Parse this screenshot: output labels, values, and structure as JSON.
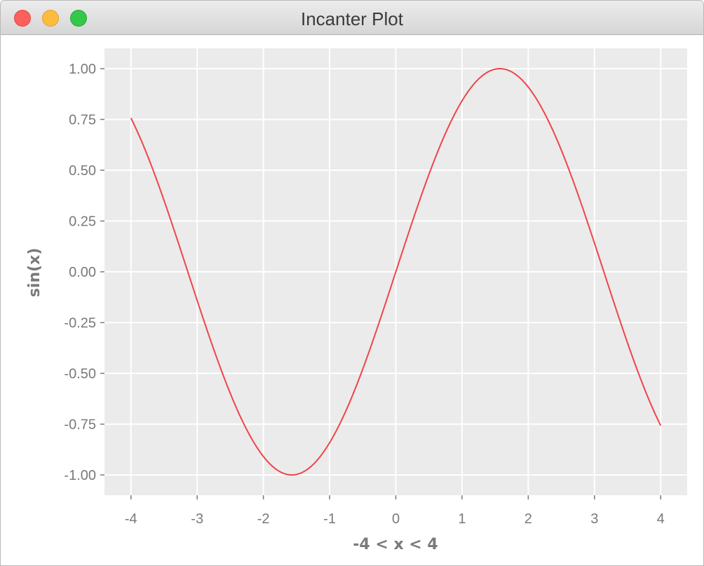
{
  "window": {
    "title": "Incanter Plot",
    "buttons": {
      "close": "close-button",
      "minimize": "minimize-button",
      "zoom": "zoom-button"
    }
  },
  "colors": {
    "plot_background": "#ebebeb",
    "gridline": "#ffffff",
    "series_line": "#f0444a",
    "tick_text": "#7a7a7a"
  },
  "chart_data": {
    "type": "line",
    "title": "",
    "xlabel": "-4 < x < 4",
    "ylabel": "sin(x)",
    "xlim": [
      -4.4,
      4.4
    ],
    "ylim": [
      -1.1,
      1.1
    ],
    "xticks": [
      -4,
      -3,
      -2,
      -1,
      0,
      1,
      2,
      3,
      4
    ],
    "xtick_labels": [
      "-4",
      "-3",
      "-2",
      "-1",
      "0",
      "1",
      "2",
      "3",
      "4"
    ],
    "yticks": [
      1.0,
      0.75,
      0.5,
      0.25,
      0.0,
      -0.25,
      -0.5,
      -0.75,
      -1.0
    ],
    "ytick_labels": [
      "1.00",
      "0.75",
      "0.50",
      "0.25",
      "0.00",
      "-0.25",
      "-0.50",
      "-0.75",
      "-1.00"
    ],
    "grid": true,
    "legend": "none",
    "series": [
      {
        "function": "sin(x)",
        "x": [
          -4.0,
          -3.75,
          -3.5,
          -3.25,
          -3.0,
          -2.75,
          -2.5,
          -2.25,
          -2.0,
          -1.75,
          -1.5,
          -1.25,
          -1.0,
          -0.75,
          -0.5,
          -0.25,
          0.0,
          0.25,
          0.5,
          0.75,
          1.0,
          1.25,
          1.5,
          1.75,
          2.0,
          2.25,
          2.5,
          2.75,
          3.0,
          3.25,
          3.5,
          3.75,
          4.0
        ],
        "y": [
          0.7568,
          0.5716,
          0.3508,
          0.1082,
          -0.1411,
          -0.3817,
          -0.5985,
          -0.7781,
          -0.9093,
          -0.984,
          -0.9975,
          -0.949,
          -0.8415,
          -0.6816,
          -0.4794,
          -0.2474,
          0.0,
          0.2474,
          0.4794,
          0.6816,
          0.8415,
          0.949,
          0.9975,
          0.984,
          0.9093,
          0.7781,
          0.5985,
          0.3817,
          0.1411,
          -0.1082,
          -0.3508,
          -0.5716,
          -0.7568
        ]
      }
    ]
  }
}
